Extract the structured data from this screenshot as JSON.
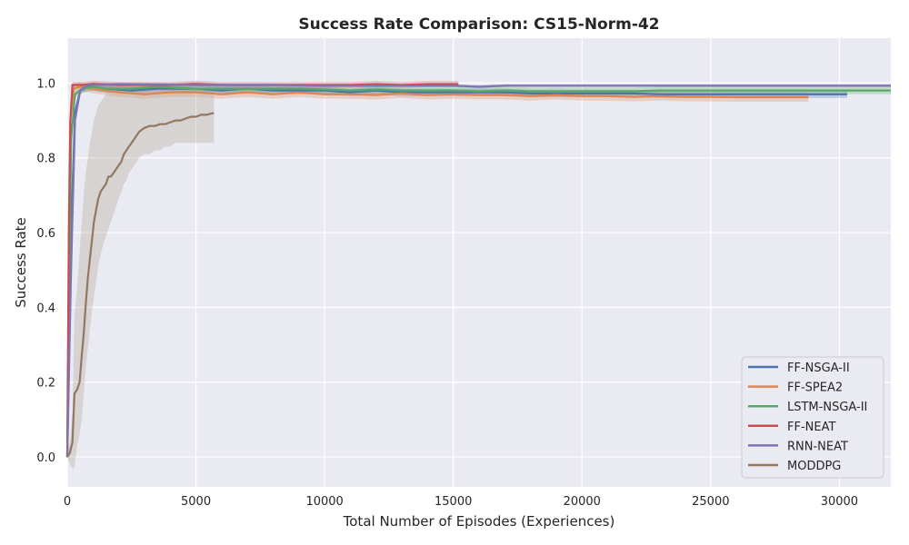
{
  "chart_data": {
    "type": "line",
    "title": "Success Rate Comparison: CS15-Norm-42",
    "xlabel": "Total Number of Episodes (Experiences)",
    "ylabel": "Success Rate",
    "xlim": [
      0,
      32000
    ],
    "ylim": [
      -0.08,
      1.12
    ],
    "xticks": [
      0,
      5000,
      10000,
      15000,
      20000,
      25000,
      30000
    ],
    "yticks": [
      0.0,
      0.2,
      0.4,
      0.6,
      0.8,
      1.0
    ],
    "xtick_labels": [
      "0",
      "5000",
      "10000",
      "15000",
      "20000",
      "25000",
      "30000"
    ],
    "ytick_labels": [
      "0.0",
      "0.2",
      "0.4",
      "0.6",
      "0.8",
      "1.0"
    ],
    "grid": true,
    "legend_position": "bottom-right",
    "background_color": "#EAEAF2",
    "series": [
      {
        "name": "FF-NSGA-II",
        "color": "#4C72B0",
        "band": 0.01,
        "points": [
          [
            0,
            0.0
          ],
          [
            150,
            0.6
          ],
          [
            300,
            0.92
          ],
          [
            500,
            0.98
          ],
          [
            800,
            0.99
          ],
          [
            1500,
            0.985
          ],
          [
            2500,
            0.98
          ],
          [
            3500,
            0.985
          ],
          [
            5000,
            0.985
          ],
          [
            6000,
            0.98
          ],
          [
            7000,
            0.985
          ],
          [
            8000,
            0.98
          ],
          [
            9000,
            0.98
          ],
          [
            10000,
            0.98
          ],
          [
            11000,
            0.975
          ],
          [
            12000,
            0.98
          ],
          [
            13000,
            0.975
          ],
          [
            14000,
            0.975
          ],
          [
            15000,
            0.975
          ],
          [
            16000,
            0.975
          ],
          [
            17000,
            0.975
          ],
          [
            18000,
            0.972
          ],
          [
            19000,
            0.972
          ],
          [
            20000,
            0.972
          ],
          [
            21000,
            0.972
          ],
          [
            22000,
            0.972
          ],
          [
            23000,
            0.97
          ],
          [
            24000,
            0.97
          ],
          [
            25000,
            0.97
          ],
          [
            26000,
            0.97
          ],
          [
            27000,
            0.97
          ],
          [
            28000,
            0.97
          ],
          [
            29000,
            0.97
          ],
          [
            30300,
            0.97
          ]
        ]
      },
      {
        "name": "FF-SPEA2",
        "color": "#DD8452",
        "band": 0.012,
        "points": [
          [
            0,
            0.0
          ],
          [
            120,
            0.9
          ],
          [
            250,
            0.985
          ],
          [
            500,
            0.99
          ],
          [
            1000,
            0.985
          ],
          [
            1500,
            0.98
          ],
          [
            2000,
            0.975
          ],
          [
            3000,
            0.97
          ],
          [
            4000,
            0.975
          ],
          [
            5000,
            0.975
          ],
          [
            6000,
            0.97
          ],
          [
            7000,
            0.975
          ],
          [
            8000,
            0.97
          ],
          [
            9000,
            0.975
          ],
          [
            10000,
            0.97
          ],
          [
            11000,
            0.97
          ],
          [
            12000,
            0.968
          ],
          [
            13000,
            0.972
          ],
          [
            14000,
            0.968
          ],
          [
            15000,
            0.97
          ],
          [
            16000,
            0.968
          ],
          [
            17000,
            0.968
          ],
          [
            18000,
            0.965
          ],
          [
            19000,
            0.968
          ],
          [
            20000,
            0.965
          ],
          [
            21000,
            0.965
          ],
          [
            22000,
            0.963
          ],
          [
            23000,
            0.965
          ],
          [
            24000,
            0.963
          ],
          [
            25000,
            0.963
          ],
          [
            26000,
            0.962
          ],
          [
            27000,
            0.962
          ],
          [
            28000,
            0.962
          ],
          [
            28800,
            0.962
          ]
        ]
      },
      {
        "name": "LSTM-NSGA-II",
        "color": "#55A868",
        "band": 0.01,
        "points": [
          [
            0,
            0.0
          ],
          [
            150,
            0.85
          ],
          [
            300,
            0.97
          ],
          [
            600,
            0.985
          ],
          [
            1000,
            0.99
          ],
          [
            1500,
            0.985
          ],
          [
            2500,
            0.985
          ],
          [
            3500,
            0.99
          ],
          [
            5000,
            0.985
          ],
          [
            6000,
            0.985
          ],
          [
            7000,
            0.985
          ],
          [
            8000,
            0.985
          ],
          [
            9000,
            0.985
          ],
          [
            10000,
            0.983
          ],
          [
            11000,
            0.98
          ],
          [
            12000,
            0.983
          ],
          [
            13000,
            0.98
          ],
          [
            14000,
            0.98
          ],
          [
            15000,
            0.98
          ],
          [
            16000,
            0.978
          ],
          [
            17000,
            0.98
          ],
          [
            18000,
            0.978
          ],
          [
            19000,
            0.978
          ],
          [
            20000,
            0.978
          ],
          [
            21000,
            0.978
          ],
          [
            22000,
            0.978
          ],
          [
            23000,
            0.98
          ],
          [
            24000,
            0.98
          ],
          [
            25000,
            0.98
          ],
          [
            26000,
            0.98
          ],
          [
            27000,
            0.98
          ],
          [
            28000,
            0.98
          ],
          [
            29000,
            0.98
          ],
          [
            30000,
            0.98
          ],
          [
            31000,
            0.98
          ],
          [
            32000,
            0.98
          ]
        ]
      },
      {
        "name": "FF-NEAT",
        "color": "#C44E52",
        "band": 0.008,
        "points": [
          [
            0,
            0.0
          ],
          [
            60,
            0.6
          ],
          [
            120,
            0.9
          ],
          [
            200,
            0.995
          ],
          [
            600,
            0.995
          ],
          [
            1000,
            0.998
          ],
          [
            2000,
            0.995
          ],
          [
            3000,
            0.995
          ],
          [
            4000,
            0.995
          ],
          [
            5000,
            0.998
          ],
          [
            6000,
            0.995
          ],
          [
            7000,
            0.995
          ],
          [
            8000,
            0.995
          ],
          [
            9000,
            0.995
          ],
          [
            10000,
            0.995
          ],
          [
            11000,
            0.995
          ],
          [
            12000,
            0.997
          ],
          [
            13000,
            0.995
          ],
          [
            14000,
            0.997
          ],
          [
            15200,
            0.997
          ]
        ]
      },
      {
        "name": "RNN-NEAT",
        "color": "#8172B3",
        "band": 0.004,
        "points": [
          [
            0,
            0.0
          ],
          [
            150,
            0.5
          ],
          [
            300,
            0.9
          ],
          [
            500,
            0.98
          ],
          [
            800,
            0.995
          ],
          [
            2000,
            0.997
          ],
          [
            5000,
            0.995
          ],
          [
            8000,
            0.995
          ],
          [
            10000,
            0.993
          ],
          [
            12000,
            0.993
          ],
          [
            15000,
            0.993
          ],
          [
            16000,
            0.99
          ],
          [
            17000,
            0.993
          ],
          [
            20000,
            0.993
          ],
          [
            23000,
            0.993
          ],
          [
            26000,
            0.993
          ],
          [
            29000,
            0.993
          ],
          [
            32000,
            0.993
          ]
        ]
      },
      {
        "name": "MODDPG",
        "color": "#937860",
        "points": [
          [
            0,
            0.0
          ],
          [
            100,
            0.01
          ],
          [
            200,
            0.04
          ],
          [
            280,
            0.17
          ],
          [
            380,
            0.18
          ],
          [
            480,
            0.2
          ],
          [
            560,
            0.27
          ],
          [
            640,
            0.33
          ],
          [
            720,
            0.41
          ],
          [
            800,
            0.48
          ],
          [
            880,
            0.53
          ],
          [
            960,
            0.58
          ],
          [
            1040,
            0.63
          ],
          [
            1120,
            0.66
          ],
          [
            1200,
            0.69
          ],
          [
            1300,
            0.71
          ],
          [
            1400,
            0.72
          ],
          [
            1500,
            0.73
          ],
          [
            1600,
            0.75
          ],
          [
            1700,
            0.75
          ],
          [
            1800,
            0.76
          ],
          [
            1900,
            0.77
          ],
          [
            2000,
            0.78
          ],
          [
            2100,
            0.79
          ],
          [
            2200,
            0.81
          ],
          [
            2300,
            0.82
          ],
          [
            2400,
            0.83
          ],
          [
            2500,
            0.84
          ],
          [
            2600,
            0.85
          ],
          [
            2700,
            0.86
          ],
          [
            2800,
            0.87
          ],
          [
            3000,
            0.88
          ],
          [
            3200,
            0.885
          ],
          [
            3400,
            0.885
          ],
          [
            3600,
            0.89
          ],
          [
            3800,
            0.89
          ],
          [
            4000,
            0.895
          ],
          [
            4200,
            0.9
          ],
          [
            4400,
            0.9
          ],
          [
            4600,
            0.905
          ],
          [
            4800,
            0.91
          ],
          [
            5000,
            0.91
          ],
          [
            5200,
            0.915
          ],
          [
            5400,
            0.915
          ],
          [
            5700,
            0.92
          ]
        ],
        "band_lower": [
          0.0,
          -0.02,
          -0.03,
          -0.03,
          0.03,
          0.06,
          0.1,
          0.17,
          0.24,
          0.29,
          0.34,
          0.39,
          0.43,
          0.47,
          0.51,
          0.54,
          0.57,
          0.59,
          0.61,
          0.63,
          0.65,
          0.67,
          0.69,
          0.71,
          0.73,
          0.74,
          0.76,
          0.77,
          0.78,
          0.79,
          0.8,
          0.81,
          0.81,
          0.82,
          0.82,
          0.83,
          0.83,
          0.84,
          0.84,
          0.84,
          0.84,
          0.84,
          0.84,
          0.84,
          0.84
        ],
        "band_upper": [
          0.0,
          0.04,
          0.12,
          0.38,
          0.45,
          0.55,
          0.63,
          0.7,
          0.76,
          0.8,
          0.84,
          0.87,
          0.9,
          0.92,
          0.94,
          0.95,
          0.96,
          0.97,
          0.98,
          0.99,
          0.99,
          0.99,
          0.99,
          1.0,
          1.0,
          1.0,
          1.0,
          1.0,
          1.0,
          1.0,
          1.0,
          1.0,
          1.0,
          1.0,
          1.0,
          1.0,
          1.0,
          1.0,
          1.0,
          1.0,
          1.0,
          1.0,
          1.0,
          1.0,
          1.0
        ]
      }
    ]
  }
}
